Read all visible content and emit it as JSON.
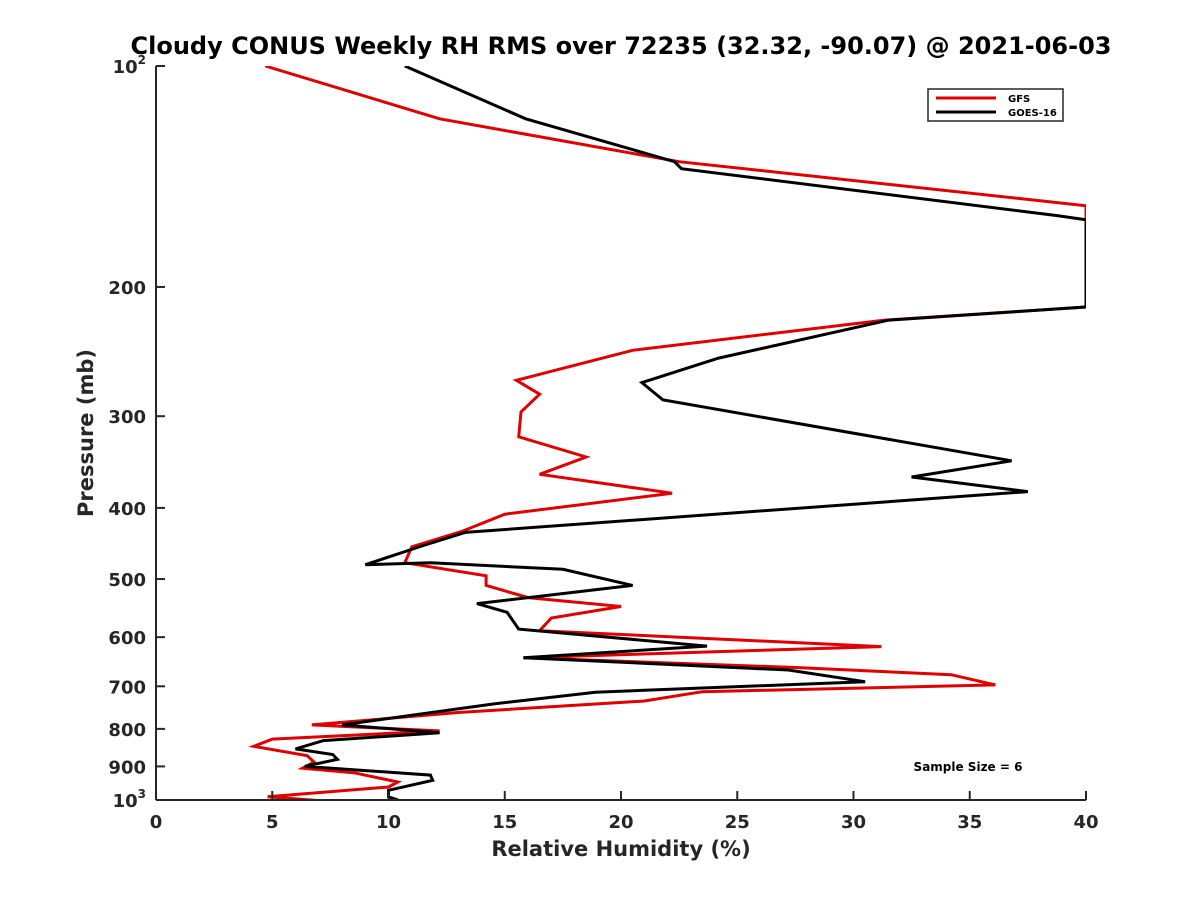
{
  "chart_data": {
    "type": "line",
    "title": "Cloudy CONUS Weekly RH RMS over 72235 (32.32, -90.07) @ 2021-06-03",
    "xlabel": "Relative Humidity (%)",
    "ylabel": "Pressure (mb)",
    "xlim": [
      0,
      40
    ],
    "ylim": [
      100,
      1000
    ],
    "y_scale": "log",
    "y_reversed": true,
    "x_ticks": [
      0,
      5,
      10,
      15,
      20,
      25,
      30,
      35,
      40
    ],
    "x_tick_labels": [
      "0",
      "5",
      "10",
      "15",
      "20",
      "25",
      "30",
      "35",
      "40"
    ],
    "y_ticks": [
      {
        "value": 100,
        "base": "10",
        "exp": "2"
      },
      {
        "value": 200,
        "label": "200"
      },
      {
        "value": 300,
        "label": "300"
      },
      {
        "value": 400,
        "label": "400"
      },
      {
        "value": 500,
        "label": "500"
      },
      {
        "value": 600,
        "label": "600"
      },
      {
        "value": 700,
        "label": "700"
      },
      {
        "value": 800,
        "label": "800"
      },
      {
        "value": 900,
        "label": "900"
      },
      {
        "value": 1000,
        "base": "10",
        "exp": "3"
      }
    ],
    "legend_position": "top-right",
    "annotation": "Sample Size = 6",
    "series": [
      {
        "name": "GFS",
        "color": "#e00000",
        "points": [
          [
            4.7,
            100
          ],
          [
            12.2,
            118
          ],
          [
            22.5,
            135
          ],
          [
            40.0,
            155
          ],
          [
            40.0,
            213
          ],
          [
            31.3,
            222
          ],
          [
            20.5,
            244
          ],
          [
            15.5,
            268
          ],
          [
            16.5,
            280
          ],
          [
            15.7,
            296
          ],
          [
            15.6,
            320
          ],
          [
            18.5,
            341
          ],
          [
            16.5,
            360
          ],
          [
            22.2,
            382
          ],
          [
            15.0,
            408
          ],
          [
            13.2,
            430
          ],
          [
            11.0,
            452
          ],
          [
            10.7,
            475
          ],
          [
            14.2,
            495
          ],
          [
            14.2,
            510
          ],
          [
            16.0,
            530
          ],
          [
            20.0,
            545
          ],
          [
            17.0,
            565
          ],
          [
            16.5,
            588
          ],
          [
            31.2,
            618
          ],
          [
            15.8,
            640
          ],
          [
            27.5,
            660
          ],
          [
            34.2,
            675
          ],
          [
            36.1,
            697
          ],
          [
            23.5,
            712
          ],
          [
            21.0,
            733
          ],
          [
            13.0,
            760
          ],
          [
            6.7,
            790
          ],
          [
            12.2,
            805
          ],
          [
            5.0,
            826
          ],
          [
            4.2,
            845
          ],
          [
            6.5,
            870
          ],
          [
            6.8,
            888
          ],
          [
            6.3,
            905
          ],
          [
            8.5,
            918
          ],
          [
            10.4,
            945
          ],
          [
            10.0,
            960
          ],
          [
            4.8,
            990
          ],
          [
            8.5,
            1010
          ]
        ]
      },
      {
        "name": "GOES-16",
        "color": "#000000",
        "points": [
          [
            10.7,
            100
          ],
          [
            15.9,
            118
          ],
          [
            22.3,
            135
          ],
          [
            22.6,
            138
          ],
          [
            38.8,
            160
          ],
          [
            40.0,
            162
          ],
          [
            40.0,
            213
          ],
          [
            31.5,
            222
          ],
          [
            24.2,
            250
          ],
          [
            20.9,
            270
          ],
          [
            21.8,
            285
          ],
          [
            36.8,
            345
          ],
          [
            32.5,
            363
          ],
          [
            37.5,
            380
          ],
          [
            13.3,
            432
          ],
          [
            11.5,
            450
          ],
          [
            9.0,
            478
          ],
          [
            11.8,
            475
          ],
          [
            17.5,
            485
          ],
          [
            20.5,
            510
          ],
          [
            13.8,
            540
          ],
          [
            15.1,
            555
          ],
          [
            15.6,
            585
          ],
          [
            23.7,
            617
          ],
          [
            15.8,
            640
          ],
          [
            27.2,
            665
          ],
          [
            30.5,
            690
          ],
          [
            18.9,
            713
          ],
          [
            14.5,
            740
          ],
          [
            8.0,
            790
          ],
          [
            12.2,
            810
          ],
          [
            7.2,
            830
          ],
          [
            6.0,
            852
          ],
          [
            7.6,
            867
          ],
          [
            7.8,
            880
          ],
          [
            6.4,
            900
          ],
          [
            11.8,
            925
          ],
          [
            11.9,
            940
          ],
          [
            10.0,
            970
          ],
          [
            10.0,
            990
          ],
          [
            10.8,
            1010
          ]
        ]
      }
    ]
  }
}
